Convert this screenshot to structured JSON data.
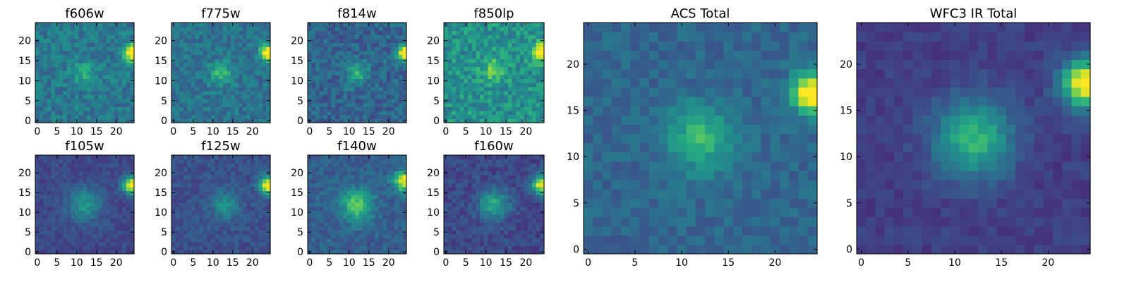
{
  "figure": {
    "colormap": "viridis",
    "cmap_stops": [
      "#440154",
      "#472d7b",
      "#3b528b",
      "#2c728e",
      "#21918c",
      "#28ae80",
      "#5ec962",
      "#addc30",
      "#fde725"
    ],
    "background": "#ffffff"
  },
  "chart_data": [
    {
      "type": "heatmap",
      "title": "f606w",
      "grid": [
        25,
        25
      ],
      "xlim": [
        0,
        24
      ],
      "ylim": [
        0,
        24
      ],
      "xticks": [
        "0",
        "5",
        "10",
        "15",
        "20"
      ],
      "yticks": [
        "0",
        "5",
        "10",
        "15",
        "20"
      ],
      "noise": 0.11,
      "base": 0.4,
      "seed": 11,
      "sources": [
        {
          "x": 12,
          "y": 12,
          "amp": 0.2,
          "sigma": 2.2
        },
        {
          "x": 24,
          "y": 17,
          "amp": 0.75,
          "sigma": 1.4
        }
      ]
    },
    {
      "type": "heatmap",
      "title": "f775w",
      "grid": [
        25,
        25
      ],
      "xlim": [
        0,
        24
      ],
      "ylim": [
        0,
        24
      ],
      "xticks": [
        "0",
        "5",
        "10",
        "15",
        "20"
      ],
      "yticks": [
        "0",
        "5",
        "10",
        "15",
        "20"
      ],
      "noise": 0.1,
      "base": 0.38,
      "seed": 23,
      "sources": [
        {
          "x": 12,
          "y": 12,
          "amp": 0.3,
          "sigma": 2.0
        },
        {
          "x": 24,
          "y": 17,
          "amp": 0.8,
          "sigma": 1.4
        }
      ]
    },
    {
      "type": "heatmap",
      "title": "f814w",
      "grid": [
        25,
        25
      ],
      "xlim": [
        0,
        24
      ],
      "ylim": [
        0,
        24
      ],
      "xticks": [
        "0",
        "5",
        "10",
        "15",
        "20"
      ],
      "yticks": [
        "0",
        "5",
        "10",
        "15",
        "20"
      ],
      "noise": 0.11,
      "base": 0.32,
      "seed": 37,
      "sources": [
        {
          "x": 12,
          "y": 12,
          "amp": 0.3,
          "sigma": 2.0
        },
        {
          "x": 24,
          "y": 17,
          "amp": 0.8,
          "sigma": 1.4
        }
      ]
    },
    {
      "type": "heatmap",
      "title": "f850lp",
      "grid": [
        25,
        25
      ],
      "xlim": [
        0,
        24
      ],
      "ylim": [
        0,
        24
      ],
      "xticks": [
        "0",
        "5",
        "10",
        "15",
        "20"
      ],
      "yticks": [
        "0",
        "5",
        "10",
        "15",
        "20"
      ],
      "noise": 0.14,
      "base": 0.5,
      "seed": 41,
      "sources": [
        {
          "x": 12,
          "y": 13,
          "amp": 0.25,
          "sigma": 2.2
        },
        {
          "x": 24,
          "y": 17,
          "amp": 0.6,
          "sigma": 1.6
        }
      ]
    },
    {
      "type": "heatmap",
      "title": "f105w",
      "grid": [
        25,
        25
      ],
      "xlim": [
        0,
        24
      ],
      "ylim": [
        0,
        24
      ],
      "xticks": [
        "0",
        "5",
        "10",
        "15",
        "20"
      ],
      "yticks": [
        "0",
        "5",
        "10",
        "15",
        "20"
      ],
      "noise": 0.06,
      "base": 0.22,
      "seed": 53,
      "sources": [
        {
          "x": 12,
          "y": 12,
          "amp": 0.3,
          "sigma": 3.0
        },
        {
          "x": 24,
          "y": 17,
          "amp": 0.8,
          "sigma": 1.6
        }
      ]
    },
    {
      "type": "heatmap",
      "title": "f125w",
      "grid": [
        25,
        25
      ],
      "xlim": [
        0,
        24
      ],
      "ylim": [
        0,
        24
      ],
      "xticks": [
        "0",
        "5",
        "10",
        "15",
        "20"
      ],
      "yticks": [
        "0",
        "5",
        "10",
        "15",
        "20"
      ],
      "noise": 0.07,
      "base": 0.25,
      "seed": 67,
      "sources": [
        {
          "x": 13,
          "y": 12,
          "amp": 0.25,
          "sigma": 2.6
        },
        {
          "x": 24,
          "y": 17,
          "amp": 0.8,
          "sigma": 1.6
        }
      ]
    },
    {
      "type": "heatmap",
      "title": "f140w",
      "grid": [
        25,
        25
      ],
      "xlim": [
        0,
        24
      ],
      "ylim": [
        0,
        24
      ],
      "xticks": [
        "0",
        "5",
        "10",
        "15",
        "20"
      ],
      "yticks": [
        "0",
        "5",
        "10",
        "15",
        "20"
      ],
      "noise": 0.08,
      "base": 0.3,
      "seed": 71,
      "sources": [
        {
          "x": 12,
          "y": 12,
          "amp": 0.45,
          "sigma": 2.8
        },
        {
          "x": 24,
          "y": 18,
          "amp": 0.7,
          "sigma": 1.8
        }
      ]
    },
    {
      "type": "heatmap",
      "title": "f160w",
      "grid": [
        25,
        25
      ],
      "xlim": [
        0,
        24
      ],
      "ylim": [
        0,
        24
      ],
      "xticks": [
        "0",
        "5",
        "10",
        "15",
        "20"
      ],
      "yticks": [
        "0",
        "5",
        "10",
        "15",
        "20"
      ],
      "noise": 0.08,
      "base": 0.22,
      "seed": 83,
      "sources": [
        {
          "x": 12,
          "y": 12,
          "amp": 0.4,
          "sigma": 2.6
        },
        {
          "x": 24,
          "y": 17,
          "amp": 0.8,
          "sigma": 1.6
        }
      ]
    },
    {
      "type": "heatmap",
      "title": "ACS Total",
      "grid": [
        25,
        25
      ],
      "xlim": [
        0,
        24
      ],
      "ylim": [
        0,
        24
      ],
      "xticks": [
        "0",
        "5",
        "10",
        "15",
        "20"
      ],
      "yticks": [
        "0",
        "5",
        "10",
        "15",
        "20"
      ],
      "noise": 0.07,
      "base": 0.33,
      "seed": 97,
      "sources": [
        {
          "x": 12,
          "y": 12,
          "amp": 0.35,
          "sigma": 2.4
        },
        {
          "x": 24,
          "y": 17,
          "amp": 0.85,
          "sigma": 1.4
        }
      ]
    },
    {
      "type": "heatmap",
      "title": "WFC3 IR Total",
      "grid": [
        25,
        25
      ],
      "xlim": [
        0,
        24
      ],
      "ylim": [
        0,
        24
      ],
      "xticks": [
        "0",
        "5",
        "10",
        "15",
        "20"
      ],
      "yticks": [
        "0",
        "5",
        "10",
        "15",
        "20"
      ],
      "noise": 0.05,
      "base": 0.18,
      "seed": 103,
      "sources": [
        {
          "x": 12,
          "y": 12,
          "amp": 0.48,
          "sigma": 3.0
        },
        {
          "x": 24,
          "y": 18,
          "amp": 0.85,
          "sigma": 1.8
        }
      ]
    }
  ]
}
